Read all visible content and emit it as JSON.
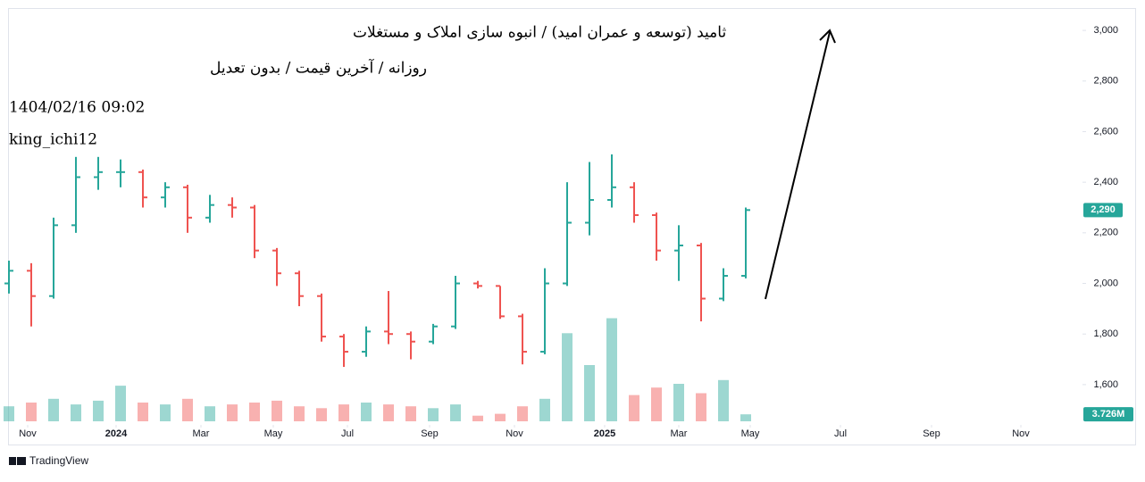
{
  "chart_data": {
    "type": "ohlc",
    "title": "ثامید (توسعه و عمران امید) / انبوه سازی املاک و مستغلات",
    "subtitle": "روزانه / آخرین قیمت / بدون تعدیل",
    "timestamp": "1404/02/16 09:02",
    "author": "king_ichi12",
    "footer": "TradingView",
    "x": [
      0,
      1,
      2,
      3,
      4,
      5,
      6,
      7,
      8,
      9,
      10,
      11,
      12,
      13,
      14,
      15,
      16,
      17,
      18,
      19,
      20,
      21,
      22,
      23,
      24,
      25,
      26,
      27,
      28,
      29,
      30,
      31,
      32,
      33
    ],
    "open": [
      2000,
      2050,
      1950,
      2230,
      2420,
      2440,
      2440,
      2340,
      2380,
      2260,
      2310,
      2300,
      2130,
      2040,
      1950,
      1790,
      1730,
      1810,
      1800,
      1770,
      1830,
      2000,
      1990,
      1870,
      1730,
      2000,
      2240,
      2330,
      2380,
      2270,
      2130,
      2150,
      1940,
      2030
    ],
    "high": [
      2090,
      2080,
      2260,
      2500,
      2500,
      2490,
      2450,
      2400,
      2390,
      2350,
      2340,
      2310,
      2140,
      2050,
      1960,
      1800,
      1830,
      1970,
      1810,
      1840,
      2030,
      2010,
      1990,
      1880,
      2060,
      2400,
      2480,
      2510,
      2400,
      2280,
      2230,
      2160,
      2060,
      2300
    ],
    "low": [
      1960,
      1830,
      1940,
      2200,
      2370,
      2380,
      2300,
      2300,
      2200,
      2240,
      2260,
      2100,
      1990,
      1910,
      1770,
      1670,
      1710,
      1760,
      1700,
      1760,
      1820,
      1980,
      1860,
      1680,
      1720,
      1990,
      2190,
      2300,
      2240,
      2090,
      2010,
      1850,
      1930,
      2020
    ],
    "close": [
      2050,
      1950,
      2230,
      2420,
      2440,
      2440,
      2340,
      2380,
      2260,
      2310,
      2300,
      2130,
      2040,
      1950,
      1790,
      1730,
      1810,
      1800,
      1770,
      1830,
      2000,
      1990,
      1870,
      1730,
      2000,
      2240,
      2330,
      2380,
      2270,
      2130,
      2150,
      1940,
      2030,
      2290
    ],
    "volume": [
      8,
      10,
      12,
      9,
      11,
      19,
      10,
      9,
      12,
      8,
      9,
      10,
      11,
      8,
      7,
      9,
      10,
      9,
      8,
      7,
      9,
      3,
      4,
      8,
      12,
      47,
      30,
      55,
      14,
      18,
      20,
      15,
      22,
      3.726
    ],
    "up_color": "#26a69a",
    "down_color": "#ef5350",
    "last_price": {
      "value": 2290,
      "label": "2,290"
    },
    "last_volume": {
      "value": 3.726,
      "label": "3.726M"
    },
    "xlim": [
      0,
      48
    ],
    "ylim": [
      1455,
      3085
    ],
    "volume_lim": [
      0,
      220
    ],
    "yticks": [
      {
        "value": 1600,
        "label": "1,600"
      },
      {
        "value": 1800,
        "label": "1,800"
      },
      {
        "value": 2000,
        "label": "2,000"
      },
      {
        "value": 2200,
        "label": "2,200"
      },
      {
        "value": 2400,
        "label": "2,400"
      },
      {
        "value": 2600,
        "label": "2,600"
      },
      {
        "value": 2800,
        "label": "2,800"
      },
      {
        "value": 3000,
        "label": "3,000"
      }
    ],
    "xticks": [
      {
        "value": 0.84,
        "label": "Nov"
      },
      {
        "value": 4.8,
        "label": "2024"
      },
      {
        "value": 8.6,
        "label": "Mar"
      },
      {
        "value": 11.84,
        "label": "May"
      },
      {
        "value": 15.16,
        "label": "Jul"
      },
      {
        "value": 18.84,
        "label": "Sep"
      },
      {
        "value": 22.64,
        "label": "Nov"
      },
      {
        "value": 26.68,
        "label": "2025"
      },
      {
        "value": 30,
        "label": "Mar"
      },
      {
        "value": 33.2,
        "label": "May"
      },
      {
        "value": 37.24,
        "label": "Jul"
      },
      {
        "value": 41.32,
        "label": "Sep"
      },
      {
        "value": 45.32,
        "label": "Nov"
      }
    ]
  }
}
